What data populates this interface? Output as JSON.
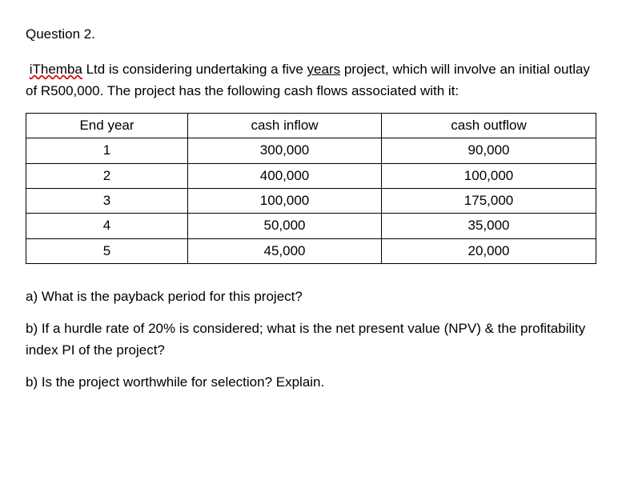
{
  "heading": "Question 2.",
  "intro_parts": {
    "p1a": " ",
    "p1b": "iThemba",
    "p1c": " Ltd is considering undertaking a five ",
    "p1d": "years",
    "p1e": " project, which will involve an initial outlay of R500,000. The project has the following cash flows associated with it:"
  },
  "table": {
    "headers": [
      "End year",
      "cash inflow",
      "cash outflow"
    ],
    "rows": [
      [
        "1",
        "300,000",
        "90,000"
      ],
      [
        "2",
        "400,000",
        "100,000"
      ],
      [
        "3",
        "100,000",
        "175,000"
      ],
      [
        "4",
        "50,000",
        "35,000"
      ],
      [
        "5",
        "45,000",
        "20,000"
      ]
    ]
  },
  "qa": "a) What is the payback period for this project?",
  "qb": "b) If a hurdle rate of 20% is considered; what is the net present value (NPV) & the profitability index PI of the project?",
  "qc": "b) Is the project worthwhile for selection? Explain."
}
